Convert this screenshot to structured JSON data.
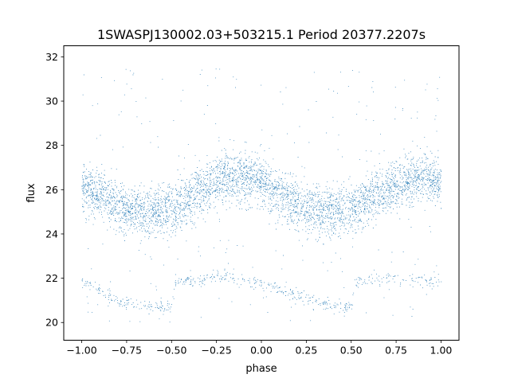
{
  "chart_data": {
    "type": "scatter",
    "title": "1SWASPJ130002.03+503215.1 Period 20377.2207s",
    "xlabel": "phase",
    "ylabel": "flux",
    "xlim": [
      -1.1,
      1.1
    ],
    "ylim": [
      19.2,
      32.5
    ],
    "xticks": [
      -1.0,
      -0.75,
      -0.5,
      -0.25,
      0.0,
      0.25,
      0.5,
      0.75,
      1.0
    ],
    "xtick_labels": [
      "−1.00",
      "−0.75",
      "−0.50",
      "−0.25",
      "0.00",
      "0.25",
      "0.50",
      "0.75",
      "1.00"
    ],
    "yticks": [
      20,
      22,
      24,
      26,
      28,
      30,
      32
    ],
    "ytick_labels": [
      "20",
      "22",
      "24",
      "26",
      "28",
      "30",
      "32"
    ],
    "grid": false,
    "marker_color": "#1f77b4",
    "series": [
      {
        "role": "main-band",
        "phase": [
          -1.0,
          -0.9,
          -0.8,
          -0.7,
          -0.6,
          -0.5,
          -0.4,
          -0.3,
          -0.2,
          -0.1,
          0.0,
          0.1,
          0.2,
          0.3,
          0.4,
          0.5,
          0.6,
          0.7,
          0.8,
          0.9,
          1.0
        ],
        "flux": [
          26.2,
          25.8,
          25.3,
          25.0,
          25.0,
          25.2,
          25.6,
          26.1,
          26.6,
          26.6,
          26.3,
          25.8,
          25.3,
          25.0,
          25.0,
          25.2,
          25.6,
          26.1,
          26.4,
          26.6,
          26.4
        ],
        "spread": 0.55
      },
      {
        "role": "secondary-band",
        "phase": [
          -1.0,
          -0.9,
          -0.8,
          -0.7,
          -0.6,
          -0.5,
          -0.48,
          -0.4,
          -0.3,
          -0.2,
          -0.1,
          0.0,
          0.1,
          0.2,
          0.3,
          0.4,
          0.5,
          0.52,
          0.6,
          0.7,
          0.8,
          0.9,
          1.0
        ],
        "flux": [
          21.9,
          21.5,
          21.0,
          20.8,
          20.7,
          20.7,
          21.7,
          21.9,
          22.0,
          22.1,
          21.9,
          21.8,
          21.5,
          21.2,
          20.9,
          20.8,
          20.7,
          21.8,
          21.9,
          22.0,
          22.0,
          21.9,
          21.8
        ],
        "spread": 0.15
      }
    ]
  }
}
